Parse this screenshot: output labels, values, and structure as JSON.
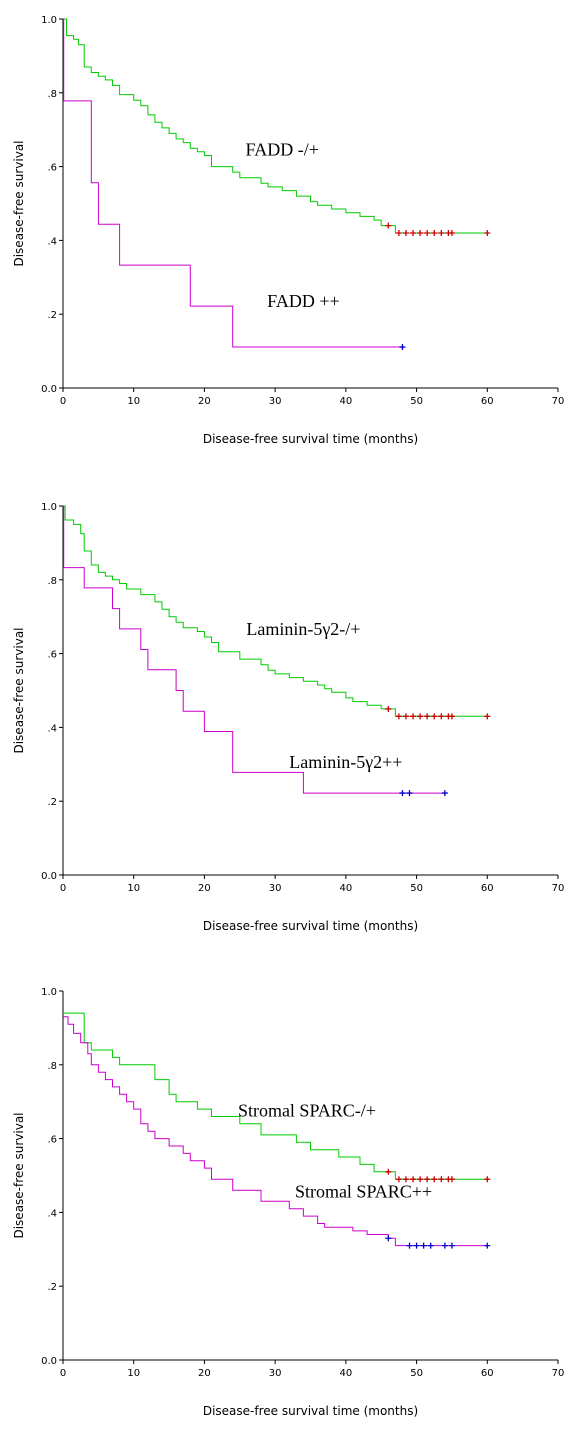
{
  "chart_data": [
    {
      "type": "line",
      "xlabel": "Disease-free survival time (months)",
      "ylabel": "Disease-free survival",
      "xlim": [
        0,
        70
      ],
      "ylim": [
        0,
        1
      ],
      "xticks": [
        "0",
        "10",
        "20",
        "30",
        "40",
        "50",
        "60",
        "70"
      ],
      "yticks": [
        "0.0",
        ".2",
        ".4",
        ".6",
        ".8",
        "1.0"
      ],
      "annotations": [
        {
          "text": "FADD -/+",
          "x": 31,
          "y": 0.63
        },
        {
          "text": "FADD ++",
          "x": 34,
          "y": 0.22
        }
      ],
      "series": [
        {
          "color": "#00cc00",
          "censor_color": "#cc0000",
          "steps": [
            [
              0,
              1.0
            ],
            [
              0.5,
              0.955
            ],
            [
              1.5,
              0.945
            ],
            [
              2.2,
              0.93
            ],
            [
              3,
              0.87
            ],
            [
              4,
              0.855
            ],
            [
              5,
              0.845
            ],
            [
              6,
              0.835
            ],
            [
              7,
              0.82
            ],
            [
              8,
              0.795
            ],
            [
              10,
              0.78
            ],
            [
              11,
              0.765
            ],
            [
              12,
              0.74
            ],
            [
              13,
              0.72
            ],
            [
              14,
              0.705
            ],
            [
              15,
              0.69
            ],
            [
              16,
              0.675
            ],
            [
              17,
              0.665
            ],
            [
              18,
              0.65
            ],
            [
              19,
              0.64
            ],
            [
              20,
              0.63
            ],
            [
              21,
              0.6
            ],
            [
              24,
              0.585
            ],
            [
              25,
              0.57
            ],
            [
              28,
              0.555
            ],
            [
              29,
              0.545
            ],
            [
              31,
              0.535
            ],
            [
              33,
              0.52
            ],
            [
              35,
              0.505
            ],
            [
              36,
              0.495
            ],
            [
              38,
              0.485
            ],
            [
              40,
              0.475
            ],
            [
              42,
              0.465
            ],
            [
              44,
              0.455
            ],
            [
              45,
              0.44
            ],
            [
              47,
              0.42
            ],
            [
              60,
              0.42
            ]
          ],
          "censored": [
            [
              46,
              0.44
            ],
            [
              47.5,
              0.42
            ],
            [
              48.5,
              0.42
            ],
            [
              49.5,
              0.42
            ],
            [
              50.5,
              0.42
            ],
            [
              51.5,
              0.42
            ],
            [
              52.5,
              0.42
            ],
            [
              53.5,
              0.42
            ],
            [
              54.5,
              0.42
            ],
            [
              55,
              0.42
            ],
            [
              60,
              0.42
            ]
          ]
        },
        {
          "color": "#cc00cc",
          "censor_color": "#0000cc",
          "steps": [
            [
              0,
              1.0
            ],
            [
              0.1,
              0.778
            ],
            [
              4,
              0.556
            ],
            [
              5,
              0.444
            ],
            [
              8,
              0.333
            ],
            [
              18,
              0.222
            ],
            [
              24,
              0.111
            ],
            [
              48,
              0.111
            ]
          ],
          "censored": [
            [
              48,
              0.111
            ]
          ]
        }
      ]
    },
    {
      "type": "line",
      "xlabel": "Disease-free survival time (months)",
      "ylabel": "Disease-free survival",
      "xlim": [
        0,
        70
      ],
      "ylim": [
        0,
        1
      ],
      "xticks": [
        "0",
        "10",
        "20",
        "30",
        "40",
        "50",
        "60",
        "70"
      ],
      "yticks": [
        "0.0",
        ".2",
        ".4",
        ".6",
        ".8",
        "1.0"
      ],
      "annotations": [
        {
          "text": "Laminin-5γ2-/+",
          "x": 34,
          "y": 0.65
        },
        {
          "text": "Laminin-5γ2++",
          "x": 40,
          "y": 0.29
        }
      ],
      "series": [
        {
          "color": "#00cc00",
          "censor_color": "#cc0000",
          "steps": [
            [
              0,
              1.0
            ],
            [
              0.3,
              0.962
            ],
            [
              1.5,
              0.95
            ],
            [
              2.5,
              0.925
            ],
            [
              3,
              0.878
            ],
            [
              4,
              0.84
            ],
            [
              5,
              0.82
            ],
            [
              6,
              0.81
            ],
            [
              7,
              0.8
            ],
            [
              8,
              0.79
            ],
            [
              9,
              0.775
            ],
            [
              11,
              0.76
            ],
            [
              13,
              0.74
            ],
            [
              14,
              0.72
            ],
            [
              15,
              0.7
            ],
            [
              16,
              0.685
            ],
            [
              17,
              0.67
            ],
            [
              19,
              0.66
            ],
            [
              20,
              0.645
            ],
            [
              21,
              0.63
            ],
            [
              22,
              0.605
            ],
            [
              25,
              0.585
            ],
            [
              28,
              0.57
            ],
            [
              29,
              0.555
            ],
            [
              30,
              0.545
            ],
            [
              32,
              0.535
            ],
            [
              34,
              0.525
            ],
            [
              36,
              0.515
            ],
            [
              37,
              0.505
            ],
            [
              38,
              0.495
            ],
            [
              40,
              0.48
            ],
            [
              41,
              0.47
            ],
            [
              43,
              0.46
            ],
            [
              45,
              0.45
            ],
            [
              47,
              0.43
            ],
            [
              60,
              0.43
            ]
          ],
          "censored": [
            [
              46,
              0.45
            ],
            [
              47.5,
              0.43
            ],
            [
              48.5,
              0.43
            ],
            [
              49.5,
              0.43
            ],
            [
              50.5,
              0.43
            ],
            [
              51.5,
              0.43
            ],
            [
              52.5,
              0.43
            ],
            [
              53.5,
              0.43
            ],
            [
              54.5,
              0.43
            ],
            [
              55,
              0.43
            ],
            [
              60,
              0.43
            ]
          ]
        },
        {
          "color": "#cc00cc",
          "censor_color": "#0000cc",
          "steps": [
            [
              0,
              1.0
            ],
            [
              0.1,
              0.833
            ],
            [
              3,
              0.778
            ],
            [
              7,
              0.722
            ],
            [
              8,
              0.667
            ],
            [
              11,
              0.611
            ],
            [
              12,
              0.556
            ],
            [
              16,
              0.5
            ],
            [
              17,
              0.444
            ],
            [
              20,
              0.389
            ],
            [
              24,
              0.278
            ],
            [
              34,
              0.222
            ],
            [
              54,
              0.222
            ]
          ],
          "censored": [
            [
              48,
              0.222
            ],
            [
              49,
              0.222
            ],
            [
              54,
              0.222
            ]
          ]
        }
      ]
    },
    {
      "type": "line",
      "xlabel": "Disease-free survival time (months)",
      "ylabel": "Disease-free survival",
      "xlim": [
        0,
        70
      ],
      "ylim": [
        0,
        1
      ],
      "xticks": [
        "0",
        "10",
        "20",
        "30",
        "40",
        "50",
        "60",
        "70"
      ],
      "yticks": [
        "0.0",
        ".2",
        ".4",
        ".6",
        ".8",
        "1.0"
      ],
      "annotations": [
        {
          "text": "Stromal SPARC-/+",
          "x": 34.5,
          "y": 0.66
        },
        {
          "text": "Stromal SPARC++",
          "x": 42.5,
          "y": 0.44
        }
      ],
      "series": [
        {
          "color": "#00cc00",
          "censor_color": "#cc0000",
          "steps": [
            [
              0,
              0.94
            ],
            [
              3,
              0.86
            ],
            [
              4,
              0.84
            ],
            [
              7,
              0.82
            ],
            [
              8,
              0.8
            ],
            [
              13,
              0.76
            ],
            [
              15,
              0.72
            ],
            [
              16,
              0.7
            ],
            [
              19,
              0.68
            ],
            [
              21,
              0.66
            ],
            [
              25,
              0.64
            ],
            [
              28,
              0.61
            ],
            [
              33,
              0.59
            ],
            [
              35,
              0.57
            ],
            [
              39,
              0.55
            ],
            [
              42,
              0.53
            ],
            [
              44,
              0.51
            ],
            [
              47,
              0.49
            ],
            [
              60,
              0.49
            ]
          ],
          "censored": [
            [
              46,
              0.51
            ],
            [
              47.5,
              0.49
            ],
            [
              48.5,
              0.49
            ],
            [
              49.5,
              0.49
            ],
            [
              50.5,
              0.49
            ],
            [
              51.5,
              0.49
            ],
            [
              52.5,
              0.49
            ],
            [
              53.5,
              0.49
            ],
            [
              54.5,
              0.49
            ],
            [
              55,
              0.49
            ],
            [
              60,
              0.49
            ]
          ]
        },
        {
          "color": "#cc00cc",
          "censor_color": "#0000cc",
          "steps": [
            [
              0,
              0.93
            ],
            [
              0.7,
              0.91
            ],
            [
              1.5,
              0.885
            ],
            [
              2.5,
              0.86
            ],
            [
              3.5,
              0.83
            ],
            [
              4,
              0.8
            ],
            [
              5,
              0.78
            ],
            [
              6,
              0.76
            ],
            [
              7,
              0.74
            ],
            [
              8,
              0.72
            ],
            [
              9,
              0.7
            ],
            [
              10,
              0.68
            ],
            [
              11,
              0.64
            ],
            [
              12,
              0.62
            ],
            [
              13,
              0.6
            ],
            [
              15,
              0.58
            ],
            [
              17,
              0.56
            ],
            [
              18,
              0.54
            ],
            [
              20,
              0.52
            ],
            [
              21,
              0.49
            ],
            [
              24,
              0.46
            ],
            [
              28,
              0.43
            ],
            [
              32,
              0.41
            ],
            [
              34,
              0.39
            ],
            [
              36,
              0.37
            ],
            [
              37,
              0.36
            ],
            [
              41,
              0.35
            ],
            [
              43,
              0.34
            ],
            [
              46,
              0.33
            ],
            [
              47,
              0.31
            ],
            [
              60,
              0.31
            ]
          ],
          "censored": [
            [
              46,
              0.33
            ],
            [
              49,
              0.31
            ],
            [
              50,
              0.31
            ],
            [
              51,
              0.31
            ],
            [
              52,
              0.31
            ],
            [
              54,
              0.31
            ],
            [
              55,
              0.31
            ],
            [
              60,
              0.31
            ]
          ]
        }
      ]
    }
  ]
}
